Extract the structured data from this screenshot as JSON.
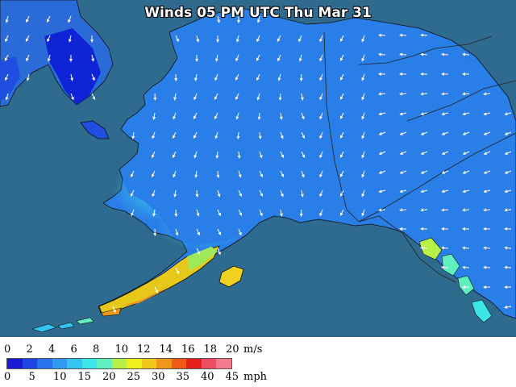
{
  "map": {
    "title": "Winds 05 PM UTC Thu Mar 31",
    "ocean_color": "#2f6a8f",
    "arrow_color": "#ffffff",
    "border_color": "#222222"
  },
  "legend": {
    "ms_unit": "m/s",
    "mph_unit": "mph",
    "ms_labels": [
      "0",
      "2",
      "4",
      "6",
      "8",
      "10",
      "12",
      "14",
      "16",
      "18",
      "20"
    ],
    "mph_labels": [
      "0",
      "5",
      "10",
      "15",
      "20",
      "25",
      "30",
      "35",
      "40",
      "45"
    ],
    "colors": [
      "#1a1ad6",
      "#1e44e6",
      "#2a72ec",
      "#2f9af0",
      "#33c4f2",
      "#3de6e6",
      "#60f0c0",
      "#b8f04a",
      "#f0f020",
      "#f2c81a",
      "#f0961a",
      "#ee5a18",
      "#e6201a",
      "#f04c60",
      "#f27a8c"
    ]
  }
}
